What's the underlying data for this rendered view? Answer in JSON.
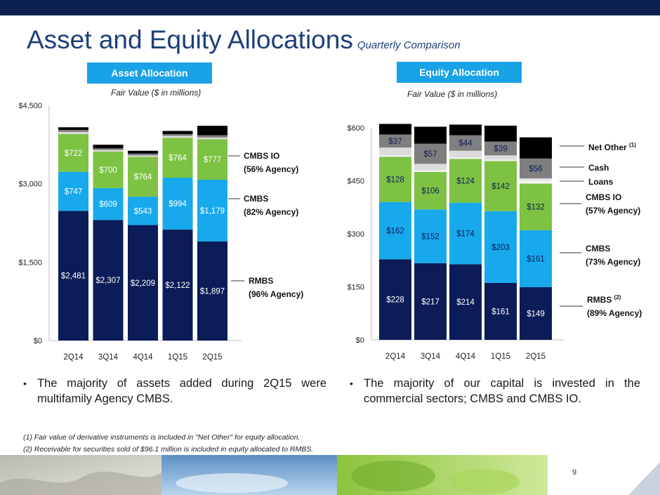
{
  "slide": {
    "title": "Asset and Equity Allocations",
    "subtitle": "Quarterly Comparison",
    "page_number": "9"
  },
  "asset_panel": {
    "label": "Asset Allocation",
    "fair_value_label": "Fair Value ($ in millions)"
  },
  "equity_panel": {
    "label": "Equity Allocation",
    "fair_value_label": "Fair Value ($ in millions)"
  },
  "bullets": {
    "left": "The majority of assets added during 2Q15 were multifamily Agency CMBS.",
    "right": "The majority of our capital is invested in the commercial sectors; CMBS and CMBS IO."
  },
  "footnotes": [
    "(1)  Fair value of derivative instruments is included in \"Net Other\" for equity allocation.",
    "(2)  Receivable for securities sold of $96.1 million is included in equity allocated to RMBS."
  ],
  "colors": {
    "rmbs": "#0c1c58",
    "cmbs": "#17a9ec",
    "cmbs_io": "#7dc242",
    "loans": "#dcdcdc",
    "cash": "#7f7f7f",
    "net_other": "#000000",
    "panel": "#1aa2e6",
    "title": "#1d3f7a"
  },
  "chart_data": [
    {
      "type": "bar",
      "stacked": true,
      "categories": [
        "2Q14",
        "3Q14",
        "4Q14",
        "1Q15",
        "2Q15"
      ],
      "ylim": [
        0,
        4500
      ],
      "yticks": [
        "$0",
        "$1,500",
        "$3,000",
        "$4,500"
      ],
      "ytick_values": [
        0,
        1500,
        3000,
        4500
      ],
      "series": [
        {
          "name": "RMBS",
          "values": [
            2481,
            2307,
            2209,
            2122,
            1897
          ],
          "labels": [
            "$2,481",
            "$2,307",
            "$2,209",
            "$2,122",
            "$1,897"
          ],
          "color": "#0c1c58",
          "label_color": "#ffffff"
        },
        {
          "name": "CMBS",
          "values": [
            747,
            609,
            543,
            994,
            1179
          ],
          "labels": [
            "$747",
            "$609",
            "$543",
            "$994",
            "$1,179"
          ],
          "color": "#17a9ec",
          "label_color": "#ffffff"
        },
        {
          "name": "CMBS IO",
          "values": [
            722,
            700,
            764,
            764,
            777
          ],
          "labels": [
            "$722",
            "$700",
            "$764",
            "$764",
            "$777"
          ],
          "color": "#7dc242",
          "label_color": "#ffffff"
        },
        {
          "values": [
            40,
            30,
            25,
            35,
            30
          ],
          "color": "#dcdcdc"
        },
        {
          "values": [
            40,
            30,
            35,
            35,
            45
          ],
          "color": "#7f7f7f"
        },
        {
          "values": [
            50,
            70,
            55,
            60,
            180
          ],
          "color": "#000000"
        }
      ],
      "legend_labels": [
        {
          "text": "CMBS IO",
          "sub": "(56% Agency)"
        },
        {
          "text": "CMBS",
          "sub": "(82% Agency)"
        },
        {
          "text": "RMBS",
          "sub": "(96% Agency)"
        }
      ]
    },
    {
      "type": "bar",
      "stacked": true,
      "categories": [
        "2Q14",
        "3Q14",
        "4Q14",
        "1Q15",
        "2Q15"
      ],
      "ylim": [
        0,
        600
      ],
      "yticks": [
        "$0",
        "$150",
        "$300",
        "$450",
        "$600"
      ],
      "ytick_values": [
        0,
        150,
        300,
        450,
        600
      ],
      "series": [
        {
          "name": "RMBS",
          "values": [
            228,
            217,
            214,
            161,
            149
          ],
          "labels": [
            "$228",
            "$217",
            "$214",
            "$161",
            "$149"
          ],
          "color": "#0c1c58",
          "label_color": "#ffffff"
        },
        {
          "name": "CMBS",
          "values": [
            162,
            152,
            174,
            203,
            161
          ],
          "labels": [
            "$162",
            "$152",
            "$174",
            "$203",
            "$161"
          ],
          "color": "#17a9ec",
          "label_color": "#0c1c58"
        },
        {
          "name": "CMBS IO",
          "values": [
            128,
            106,
            124,
            142,
            132
          ],
          "labels": [
            "$128",
            "$106",
            "$124",
            "$142",
            "$132"
          ],
          "color": "#7dc242",
          "label_color": "#0c1c58"
        },
        {
          "name": "Loans",
          "values": [
            4,
            5,
            4,
            4,
            10
          ],
          "color": "#f2f2f2"
        },
        {
          "name": "Cash",
          "values": [
            22,
            18,
            19,
            12,
            5
          ],
          "color": "#dcdcdc"
        },
        {
          "name": "Net Other",
          "values": [
            37,
            57,
            44,
            39,
            56
          ],
          "labels": [
            "$37",
            "$57",
            "$44",
            "$39",
            "$56"
          ],
          "color": "#7f7f7f",
          "label_color": "#0c1c58"
        },
        {
          "values": [
            30,
            48,
            30,
            45,
            60
          ],
          "color": "#000000"
        }
      ],
      "legend_labels": [
        {
          "text": "Net Other ",
          "sup": "(1)",
          "sub": ""
        },
        {
          "text": "Cash",
          "sub": ""
        },
        {
          "text": "Loans",
          "sub": ""
        },
        {
          "text": "CMBS IO",
          "sub": "(57% Agency)"
        },
        {
          "text": "CMBS",
          "sub": "(73% Agency)"
        },
        {
          "text": "RMBS ",
          "sup": "(2)",
          "sub": "(89% Agency)"
        }
      ]
    }
  ]
}
